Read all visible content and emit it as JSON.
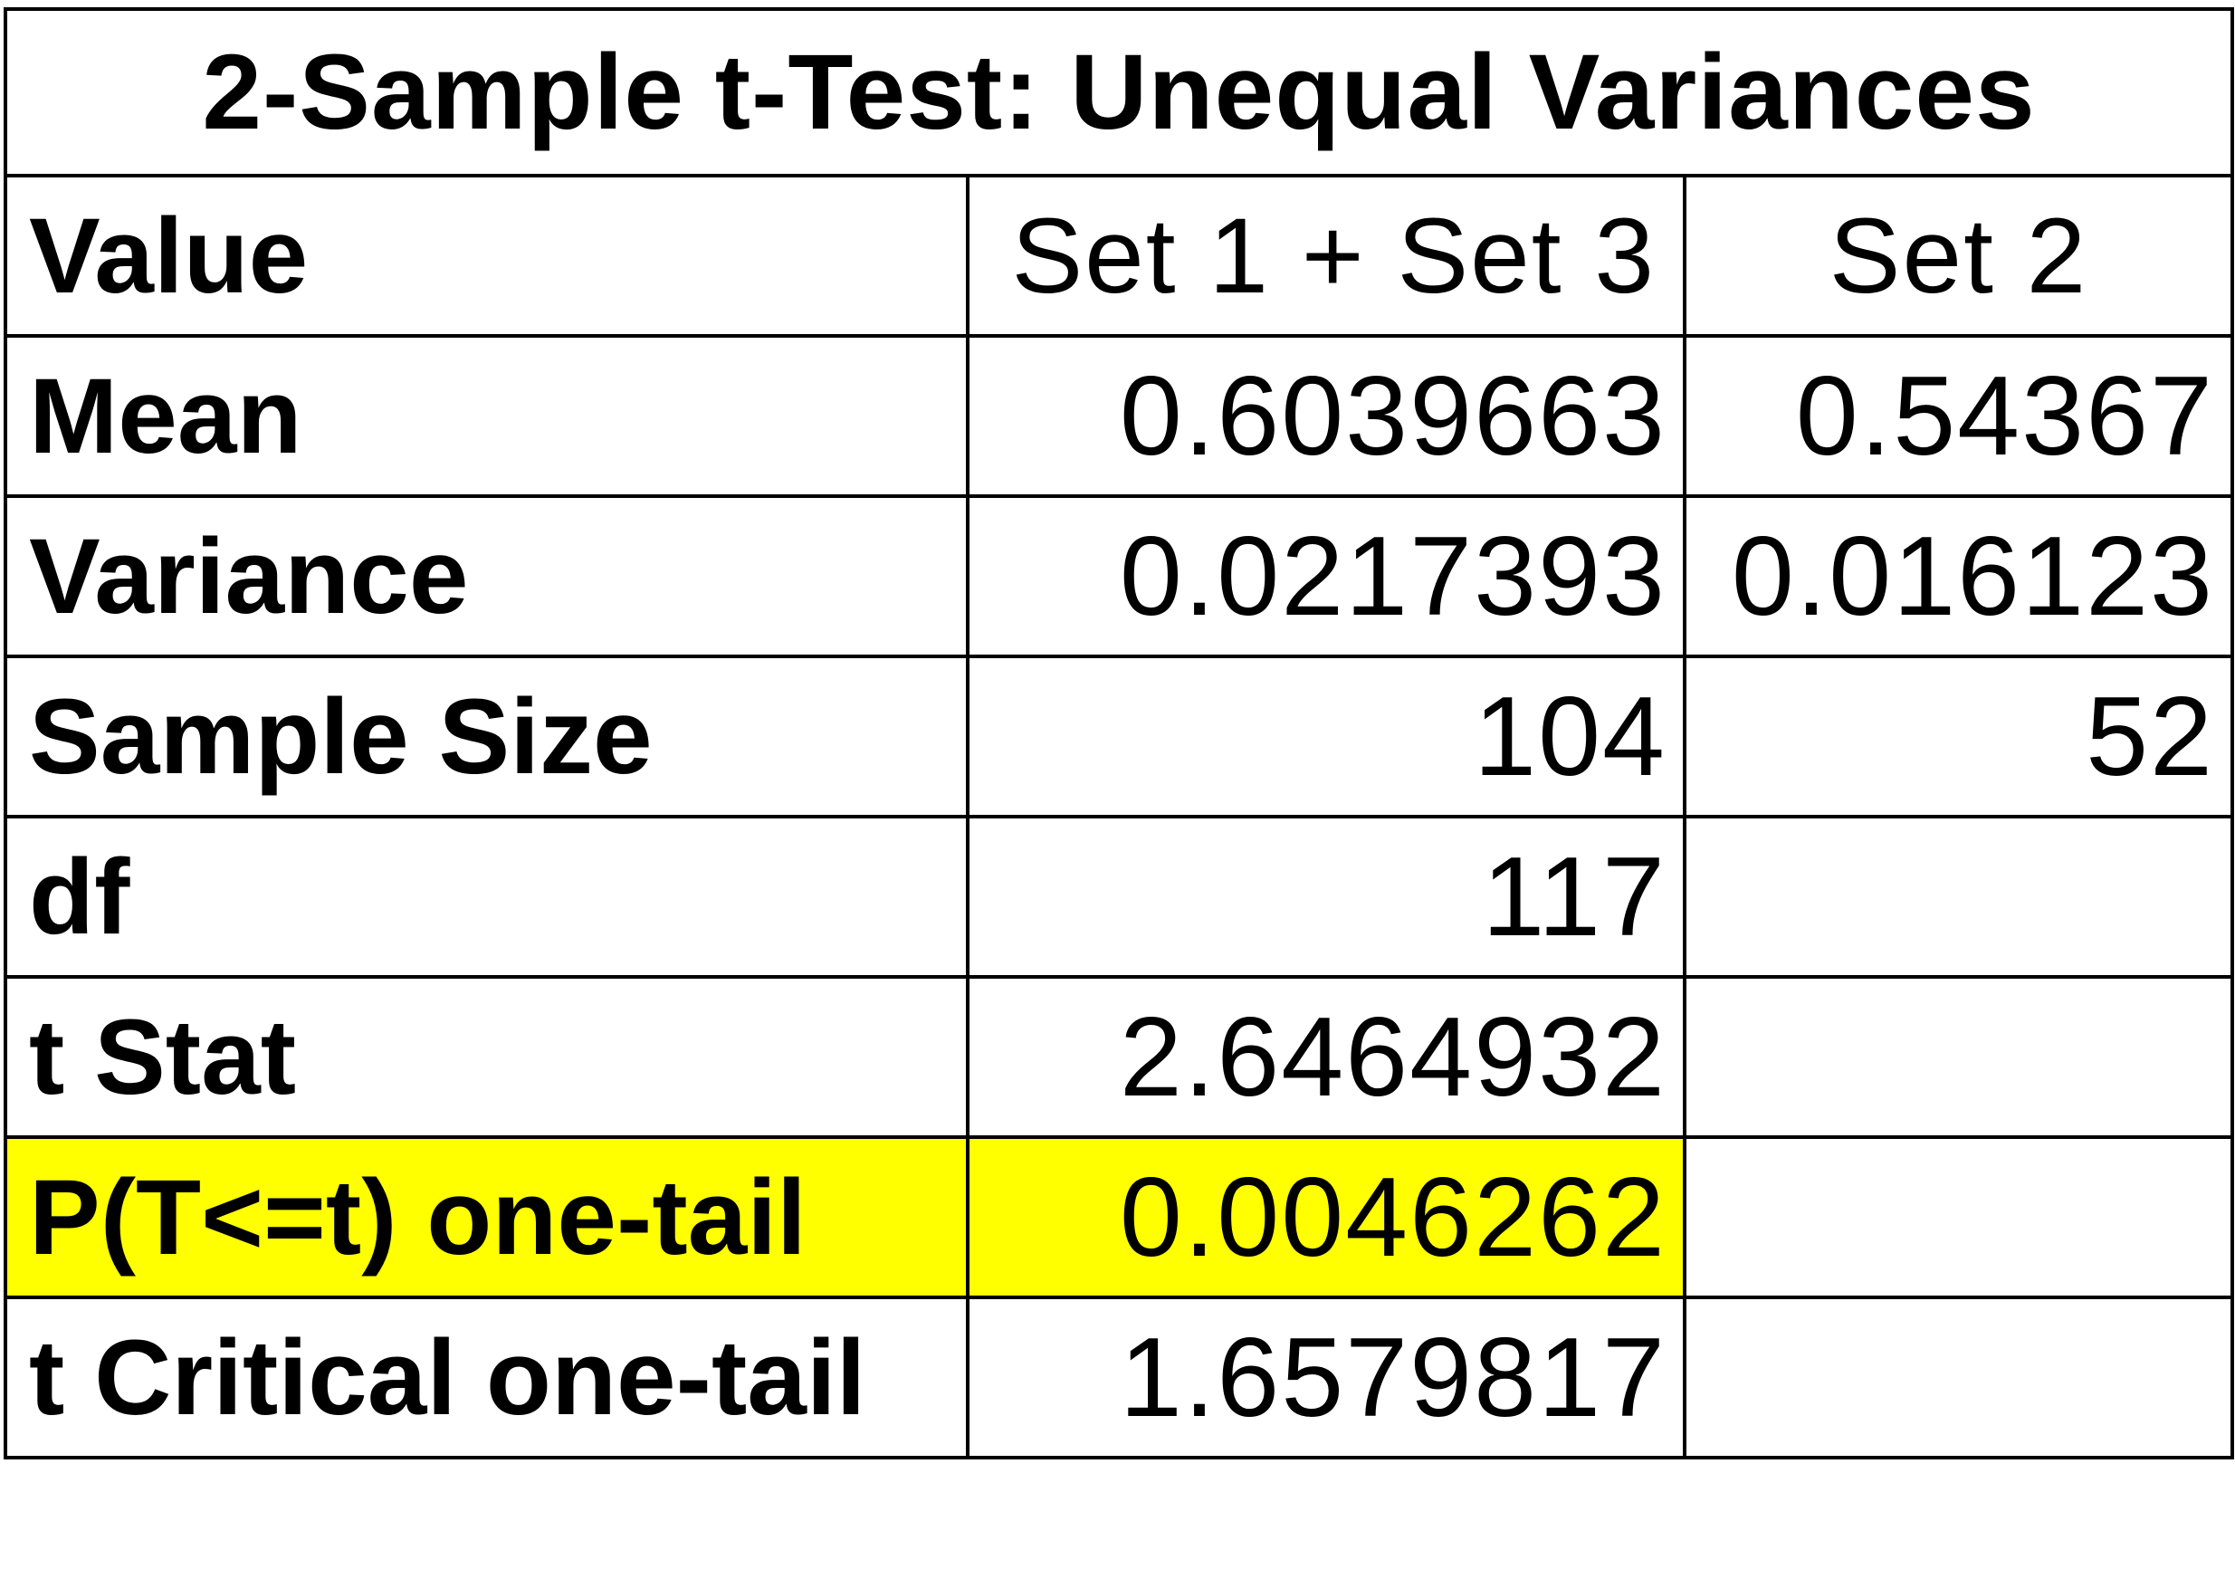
{
  "title": "2-Sample t-Test: Unequal Variances",
  "header": {
    "label": "Value",
    "set13": "Set 1 + Set 3",
    "set2": "Set 2"
  },
  "rows": [
    {
      "label": "Mean",
      "set13": "0.6039663",
      "set2": "0.54367"
    },
    {
      "label": "Variance",
      "set13": "0.0217393",
      "set2": "0.016123"
    },
    {
      "label": "Sample Size",
      "set13": "104",
      "set2": "52"
    },
    {
      "label": "df",
      "set13": "117",
      "set2": ""
    },
    {
      "label": "t Stat",
      "set13": "2.6464932",
      "set2": ""
    },
    {
      "label": "P(T<=t) one-tail",
      "set13": "0.0046262",
      "set2": "",
      "highlighted": true
    },
    {
      "label": "t Critical one-tail",
      "set13": "1.6579817",
      "set2": ""
    }
  ],
  "colors": {
    "highlight": "#ffff00",
    "border": "#000000",
    "text": "#000000"
  }
}
